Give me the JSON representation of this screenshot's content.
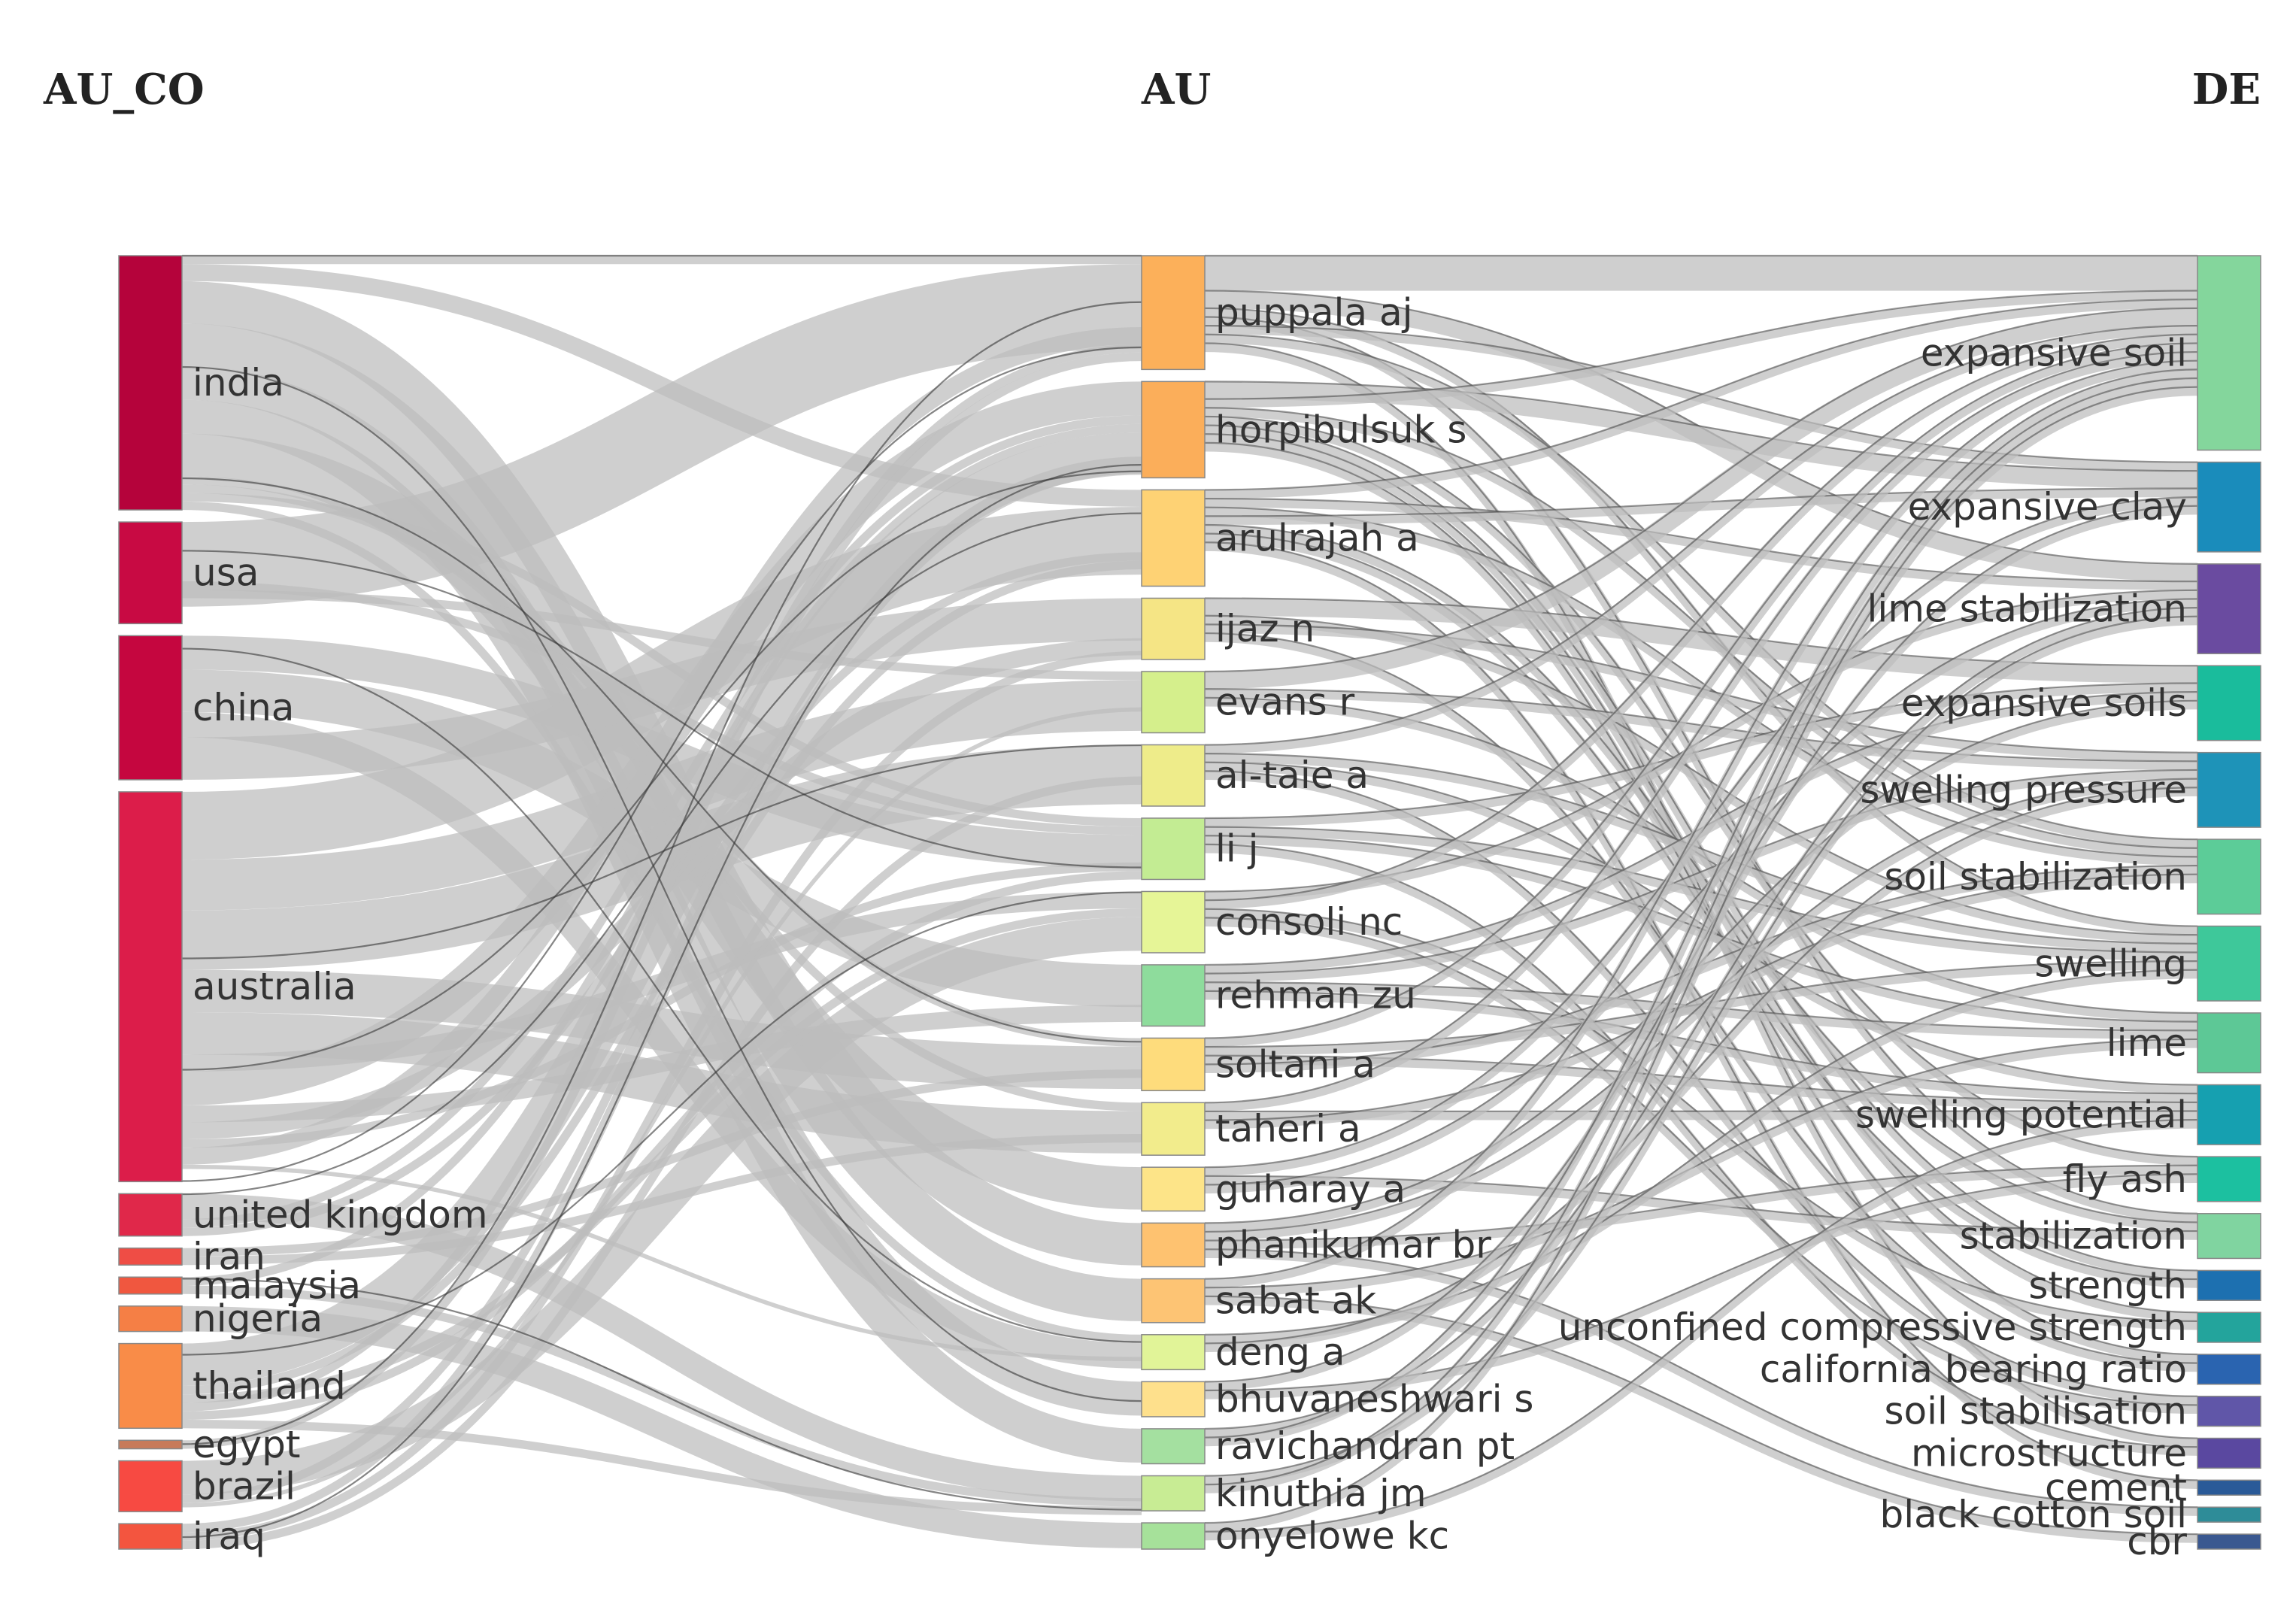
{
  "chart_data": {
    "type": "sankey",
    "columns": [
      {
        "title": "AU_CO",
        "nodes": [
          {
            "name": "india",
            "value": 30,
            "color": "#b5033b"
          },
          {
            "name": "usa",
            "value": 12,
            "color": "#c80a43"
          },
          {
            "name": "china",
            "value": 17,
            "color": "#c5063f"
          },
          {
            "name": "australia",
            "value": 46,
            "color": "#dc1d4a"
          },
          {
            "name": "united kingdom",
            "value": 5,
            "color": "#e0284a"
          },
          {
            "name": "iran",
            "value": 2,
            "color": "#ef4d45"
          },
          {
            "name": "malaysia",
            "value": 2,
            "color": "#f0573f"
          },
          {
            "name": "nigeria",
            "value": 3,
            "color": "#f57f45"
          },
          {
            "name": "thailand",
            "value": 10,
            "color": "#f98c48"
          },
          {
            "name": "egypt",
            "value": 1,
            "color": "#c77a5a"
          },
          {
            "name": "brazil",
            "value": 6,
            "color": "#f74a42"
          },
          {
            "name": "iraq",
            "value": 3,
            "color": "#f3553f"
          }
        ]
      },
      {
        "title": "AU",
        "nodes": [
          {
            "name": "puppala aj",
            "value": 13,
            "color": "#fcb05a"
          },
          {
            "name": "horpibulsuk s",
            "value": 11,
            "color": "#fbae5a"
          },
          {
            "name": "arulrajah a",
            "value": 11,
            "color": "#fed274"
          },
          {
            "name": "ijaz n",
            "value": 7,
            "color": "#f5e585"
          },
          {
            "name": "evans r",
            "value": 7,
            "color": "#d5ef8c"
          },
          {
            "name": "al-taie a",
            "value": 7,
            "color": "#eeec8a"
          },
          {
            "name": "li j",
            "value": 7,
            "color": "#c3ec93"
          },
          {
            "name": "consoli nc",
            "value": 7,
            "color": "#e6f597"
          },
          {
            "name": "rehman zu",
            "value": 7,
            "color": "#8edc9c"
          },
          {
            "name": "soltani a",
            "value": 6,
            "color": "#fedc7c"
          },
          {
            "name": "taheri a",
            "value": 6,
            "color": "#f2ec8c"
          },
          {
            "name": "guharay a",
            "value": 5,
            "color": "#fde488"
          },
          {
            "name": "phanikumar br",
            "value": 5,
            "color": "#fec270"
          },
          {
            "name": "sabat ak",
            "value": 5,
            "color": "#fdc474"
          },
          {
            "name": "deng a",
            "value": 4,
            "color": "#e1f498"
          },
          {
            "name": "bhuvaneshwari s",
            "value": 4,
            "color": "#fee08c"
          },
          {
            "name": "ravichandran pt",
            "value": 4,
            "color": "#a4e0a0"
          },
          {
            "name": "kinuthia jm",
            "value": 4,
            "color": "#c8ec94"
          },
          {
            "name": "onyelowe kc",
            "value": 3,
            "color": "#a6e19a"
          }
        ]
      },
      {
        "title": "DE",
        "nodes": [
          {
            "name": "expansive soil",
            "value": 13,
            "color": "#84d69c"
          },
          {
            "name": "expansive clay",
            "value": 6,
            "color": "#1a8cbb"
          },
          {
            "name": "lime stabilization",
            "value": 6,
            "color": "#6a4ba0"
          },
          {
            "name": "expansive soils",
            "value": 5,
            "color": "#1abc9c"
          },
          {
            "name": "swelling pressure",
            "value": 5,
            "color": "#1e93b8"
          },
          {
            "name": "soil stabilization",
            "value": 5,
            "color": "#5ccc98"
          },
          {
            "name": "swelling",
            "value": 5,
            "color": "#3ec89a"
          },
          {
            "name": "lime",
            "value": 4,
            "color": "#5dc896"
          },
          {
            "name": "swelling potential",
            "value": 4,
            "color": "#16a0b0"
          },
          {
            "name": "fly ash",
            "value": 3,
            "color": "#1cc0a0"
          },
          {
            "name": "stabilization",
            "value": 3,
            "color": "#80d4a0"
          },
          {
            "name": "strength",
            "value": 2,
            "color": "#1d70b0"
          },
          {
            "name": "unconfined compressive strength",
            "value": 2,
            "color": "#23a49c"
          },
          {
            "name": "california bearing ratio",
            "value": 2,
            "color": "#2a64b0"
          },
          {
            "name": "soil stabilisation",
            "value": 2,
            "color": "#6056a8"
          },
          {
            "name": "microstructure",
            "value": 2,
            "color": "#5a48a0"
          },
          {
            "name": "cement",
            "value": 1,
            "color": "#2a5a98"
          },
          {
            "name": "black cotton soil",
            "value": 1,
            "color": "#2e8c98"
          },
          {
            "name": "cbr",
            "value": 1,
            "color": "#3a5890"
          }
        ]
      }
    ],
    "links_left": [
      [
        "india",
        "puppala aj",
        1
      ],
      [
        "india",
        "arulrajah a",
        2
      ],
      [
        "india",
        "phanikumar br",
        5
      ],
      [
        "india",
        "sabat ak",
        5
      ],
      [
        "india",
        "bhuvaneshwari s",
        4
      ],
      [
        "india",
        "ravichandran pt",
        4
      ],
      [
        "india",
        "guharay a",
        5
      ],
      [
        "india",
        "taheri a",
        1
      ],
      [
        "india",
        "soltani a",
        1
      ],
      [
        "india",
        "li j",
        1
      ],
      [
        "india",
        "deng a",
        1
      ],
      [
        "usa",
        "puppala aj",
        10
      ],
      [
        "usa",
        "li j",
        1
      ],
      [
        "usa",
        "evans r",
        1
      ],
      [
        "china",
        "li j",
        4
      ],
      [
        "china",
        "rehman zu",
        5
      ],
      [
        "china",
        "deng a",
        3
      ],
      [
        "china",
        "ijaz n",
        5
      ],
      [
        "australia",
        "arulrajah a",
        8
      ],
      [
        "australia",
        "evans r",
        6
      ],
      [
        "australia",
        "al-taie a",
        7
      ],
      [
        "australia",
        "soltani a",
        5
      ],
      [
        "australia",
        "taheri a",
        5
      ],
      [
        "australia",
        "consoli nc",
        2
      ],
      [
        "australia",
        "horpibulsuk s",
        4
      ],
      [
        "australia",
        "rehman zu",
        2
      ],
      [
        "australia",
        "ijaz n",
        2
      ],
      [
        "australia",
        "li j",
        1
      ],
      [
        "australia",
        "puppala aj",
        2
      ],
      [
        "australia",
        "deng a",
        0.5
      ],
      [
        "united kingdom",
        "kinuthia jm",
        3
      ],
      [
        "united kingdom",
        "horpibulsuk s",
        1
      ],
      [
        "united kingdom",
        "arulrajah a",
        1
      ],
      [
        "iran",
        "soltani a",
        1
      ],
      [
        "iran",
        "taheri a",
        1
      ],
      [
        "malaysia",
        "horpibulsuk s",
        1
      ],
      [
        "malaysia",
        "kinuthia jm",
        1
      ],
      [
        "nigeria",
        "onyelowe kc",
        3
      ],
      [
        "thailand",
        "horpibulsuk s",
        5
      ],
      [
        "thailand",
        "arulrajah a",
        1
      ],
      [
        "thailand",
        "consoli nc",
        1
      ],
      [
        "thailand",
        "puppala aj",
        1
      ],
      [
        "thailand",
        "li j",
        1
      ],
      [
        "thailand",
        "kinuthia jm",
        1
      ],
      [
        "egypt",
        "puppala aj",
        1
      ],
      [
        "brazil",
        "consoli nc",
        4
      ],
      [
        "brazil",
        "horpibulsuk s",
        1
      ],
      [
        "brazil",
        "evans r",
        0.5
      ],
      [
        "iraq",
        "horpibulsuk s",
        1
      ],
      [
        "iraq",
        "ijaz n",
        1
      ],
      [
        "iraq",
        "al-taie a",
        1
      ]
    ],
    "links_right": [
      [
        "puppala aj",
        "expansive soil",
        4
      ],
      [
        "puppala aj",
        "lime stabilization",
        2
      ],
      [
        "puppala aj",
        "swelling",
        1
      ],
      [
        "puppala aj",
        "stabilization",
        1
      ],
      [
        "puppala aj",
        "expansive clay",
        1
      ],
      [
        "puppala aj",
        "soil stabilization",
        1
      ],
      [
        "puppala aj",
        "microstructure",
        1
      ],
      [
        "horpibulsuk s",
        "expansive clay",
        2
      ],
      [
        "horpibulsuk s",
        "expansive soil",
        1
      ],
      [
        "horpibulsuk s",
        "soil stabilization",
        1
      ],
      [
        "horpibulsuk s",
        "fly ash",
        1
      ],
      [
        "horpibulsuk s",
        "strength",
        1
      ],
      [
        "horpibulsuk s",
        "unconfined compressive strength",
        1
      ],
      [
        "horpibulsuk s",
        "california bearing ratio",
        1
      ],
      [
        "arulrajah a",
        "expansive soil",
        1
      ],
      [
        "arulrajah a",
        "lime stabilization",
        1
      ],
      [
        "arulrajah a",
        "soil stabilization",
        1
      ],
      [
        "arulrajah a",
        "expansive clay",
        1
      ],
      [
        "arulrajah a",
        "stabilization",
        1
      ],
      [
        "arulrajah a",
        "strength",
        1
      ],
      [
        "arulrajah a",
        "cement",
        1
      ],
      [
        "ijaz n",
        "expansive soils",
        2
      ],
      [
        "ijaz n",
        "swelling",
        1
      ],
      [
        "ijaz n",
        "swelling pressure",
        1
      ],
      [
        "ijaz n",
        "california bearing ratio",
        1
      ],
      [
        "evans r",
        "expansive soil",
        2
      ],
      [
        "evans r",
        "swelling pressure",
        1
      ],
      [
        "evans r",
        "lime",
        1
      ],
      [
        "al-taie a",
        "expansive soil",
        1
      ],
      [
        "al-taie a",
        "swelling",
        1
      ],
      [
        "al-taie a",
        "swelling potential",
        1
      ],
      [
        "al-taie a",
        "soil stabilisation",
        1
      ],
      [
        "li j",
        "expansive soils",
        1
      ],
      [
        "li j",
        "swelling",
        1
      ],
      [
        "li j",
        "lime",
        1
      ],
      [
        "li j",
        "microstructure",
        1
      ],
      [
        "consoli nc",
        "lime stabilization",
        1
      ],
      [
        "consoli nc",
        "expansive soil",
        1
      ],
      [
        "consoli nc",
        "unconfined compressive strength",
        1
      ],
      [
        "consoli nc",
        "soil stabilisation",
        1
      ],
      [
        "rehman zu",
        "expansive soils",
        1
      ],
      [
        "rehman zu",
        "swelling pressure",
        1
      ],
      [
        "rehman zu",
        "lime",
        1
      ],
      [
        "rehman zu",
        "swelling potential",
        1
      ],
      [
        "soltani a",
        "expansive soil",
        1
      ],
      [
        "soltani a",
        "swelling",
        1
      ],
      [
        "soltani a",
        "swelling potential",
        1
      ],
      [
        "soltani a",
        "soil stabilization",
        1
      ],
      [
        "taheri a",
        "expansive soil",
        1
      ],
      [
        "taheri a",
        "swelling potential",
        1
      ],
      [
        "taheri a",
        "soil stabilization",
        1
      ],
      [
        "guharay a",
        "expansive clay",
        1
      ],
      [
        "guharay a",
        "stabilization",
        1
      ],
      [
        "guharay a",
        "lime stabilization",
        1
      ],
      [
        "phanikumar br",
        "expansive soils",
        1
      ],
      [
        "phanikumar br",
        "swelling pressure",
        1
      ],
      [
        "phanikumar br",
        "fly ash",
        1
      ],
      [
        "phanikumar br",
        "black cotton soil",
        1
      ],
      [
        "sabat ak",
        "expansive soil",
        1
      ],
      [
        "sabat ak",
        "lime",
        1
      ],
      [
        "sabat ak",
        "cbr",
        1
      ],
      [
        "deng a",
        "swelling",
        1
      ],
      [
        "deng a",
        "swelling pressure",
        1
      ],
      [
        "bhuvaneshwari s",
        "expansive clay",
        1
      ],
      [
        "bhuvaneshwari s",
        "fly ash",
        1
      ],
      [
        "ravichandran pt",
        "lime stabilization",
        1
      ],
      [
        "ravichandran pt",
        "expansive soil",
        1
      ],
      [
        "kinuthia jm",
        "lime stabilization",
        1
      ],
      [
        "kinuthia jm",
        "expansive soil",
        1
      ],
      [
        "onyelowe kc",
        "expansive soil",
        1
      ],
      [
        "onyelowe kc",
        "swelling potential",
        1
      ]
    ]
  }
}
